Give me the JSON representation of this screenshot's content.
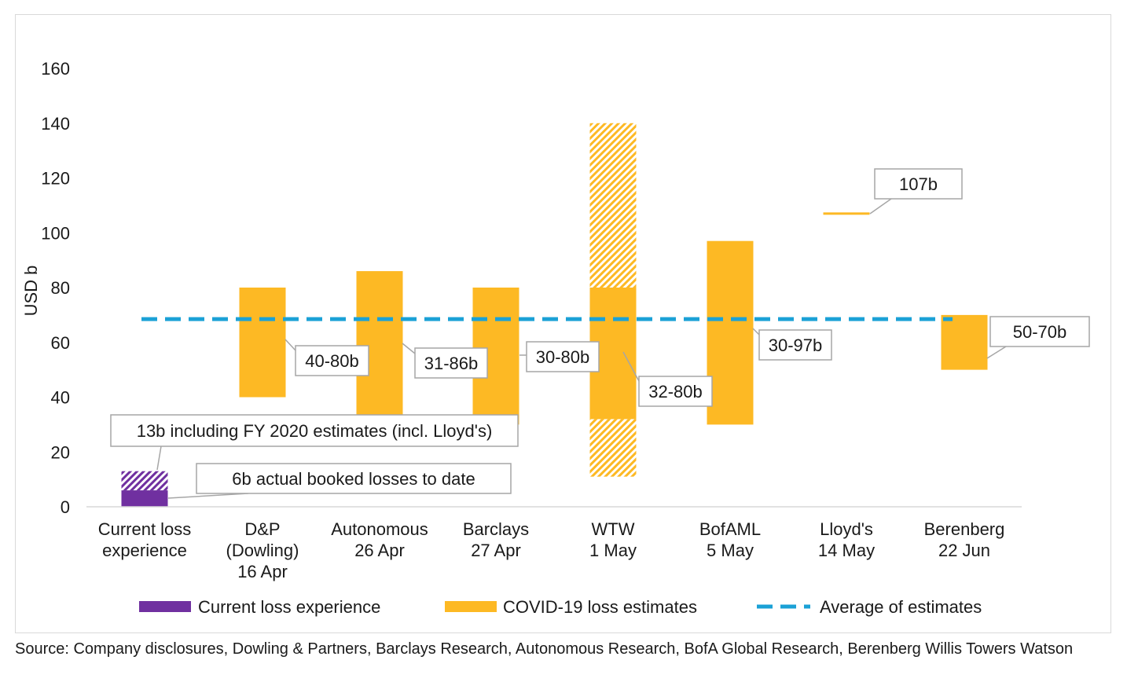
{
  "chart_data": {
    "type": "bar",
    "ylabel": "USD b",
    "ylim": [
      0,
      160
    ],
    "yticks": [
      0,
      20,
      40,
      60,
      80,
      100,
      120,
      140,
      160
    ],
    "grid": false,
    "legend_position": "bottom",
    "categories": [
      {
        "label_lines": [
          "Current loss",
          "experience"
        ]
      },
      {
        "label_lines": [
          "D&P",
          "(Dowling)",
          "16 Apr"
        ]
      },
      {
        "label_lines": [
          "Autonomous",
          "26 Apr"
        ]
      },
      {
        "label_lines": [
          "Barclays",
          "27 Apr"
        ]
      },
      {
        "label_lines": [
          "WTW",
          "1 May"
        ]
      },
      {
        "label_lines": [
          "BofAML",
          "5 May"
        ]
      },
      {
        "label_lines": [
          "Lloyd's",
          "14 May"
        ]
      },
      {
        "label_lines": [
          "Berenberg",
          "22 Jun"
        ]
      }
    ],
    "current_loss": {
      "series": "Current loss experience",
      "booked": 6,
      "including_fy2020": 13,
      "booked_label": "6b actual booked losses to date",
      "fy2020_label": "13b including FY 2020 estimates (incl. Lloyd's)"
    },
    "estimates": [
      {
        "category_index": 1,
        "low": 40,
        "high": 80,
        "label": "40-80b"
      },
      {
        "category_index": 2,
        "low": 31,
        "high": 86,
        "label": "31-86b"
      },
      {
        "category_index": 3,
        "low": 30,
        "high": 80,
        "label": "30-80b"
      },
      {
        "category_index": 4,
        "low": 32,
        "high": 80,
        "label": "32-80b",
        "extended_low": 11,
        "extended_high": 140
      },
      {
        "category_index": 5,
        "low": 30,
        "high": 97,
        "label": "30-97b"
      },
      {
        "category_index": 6,
        "low": 107,
        "high": 107,
        "label": "107b"
      },
      {
        "category_index": 7,
        "low": 50,
        "high": 70,
        "label": "50-70b"
      }
    ],
    "average": 68.5,
    "colors": {
      "current": "#7030a0",
      "estimate": "#fdb924",
      "average": "#1ba1d6",
      "callout_border": "#a6a6a6"
    },
    "legend": [
      {
        "key": "current",
        "label": "Current loss experience"
      },
      {
        "key": "estimate",
        "label": "COVID-19 loss estimates"
      },
      {
        "key": "average",
        "label": "Average of estimates"
      }
    ]
  },
  "source": "Source: Company disclosures, Dowling & Partners, Barclays Research, Autonomous Research, BofA Global Research, Berenberg Willis Towers Watson"
}
